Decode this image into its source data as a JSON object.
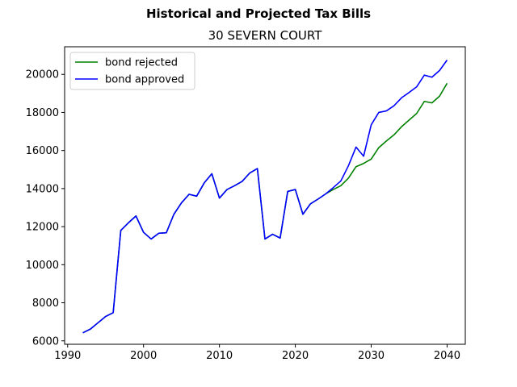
{
  "chart_data": {
    "type": "line",
    "suptitle": "Historical and Projected Tax Bills",
    "title": "30 SEVERN COURT",
    "xlabel": "",
    "ylabel": "",
    "xlim": [
      1989.6,
      2042.4
    ],
    "ylim": [
      5820,
      21450
    ],
    "x_ticks": [
      1990,
      2000,
      2010,
      2020,
      2030,
      2040
    ],
    "y_ticks": [
      6000,
      8000,
      10000,
      12000,
      14000,
      16000,
      18000,
      20000
    ],
    "grid": false,
    "legend_position": "upper-left",
    "colors": {
      "bond rejected": "#008000",
      "bond approved": "#0000ff"
    },
    "x": [
      1992,
      1993,
      1994,
      1995,
      1996,
      1997,
      1998,
      1999,
      2000,
      2001,
      2002,
      2003,
      2004,
      2005,
      2006,
      2007,
      2008,
      2009,
      2010,
      2011,
      2012,
      2013,
      2014,
      2015,
      2016,
      2017,
      2018,
      2019,
      2020,
      2021,
      2022,
      2023,
      2024,
      2025,
      2026,
      2027,
      2028,
      2029,
      2030,
      2031,
      2032,
      2033,
      2034,
      2035,
      2036,
      2037,
      2038,
      2039,
      2040
    ],
    "series": [
      {
        "name": "bond rejected",
        "values": [
          6420,
          6620,
          6950,
          7280,
          7480,
          11800,
          12200,
          12560,
          11700,
          11350,
          11650,
          11680,
          12650,
          13250,
          13700,
          13600,
          14300,
          14780,
          13500,
          13950,
          14150,
          14380,
          14820,
          15050,
          11350,
          11600,
          11400,
          13850,
          13950,
          12650,
          13200,
          13450,
          13720,
          13950,
          14150,
          14550,
          15150,
          15320,
          15550,
          16150,
          16500,
          16820,
          17250,
          17600,
          17950,
          18580,
          18500,
          18850,
          19530
        ]
      },
      {
        "name": "bond approved",
        "values": [
          6420,
          6620,
          6950,
          7280,
          7480,
          11800,
          12200,
          12560,
          11700,
          11350,
          11650,
          11680,
          12650,
          13250,
          13700,
          13600,
          14300,
          14780,
          13500,
          13950,
          14150,
          14380,
          14820,
          15050,
          11350,
          11600,
          11400,
          13850,
          13950,
          12650,
          13200,
          13450,
          13720,
          14050,
          14400,
          15200,
          16180,
          15700,
          17350,
          18000,
          18080,
          18350,
          18770,
          19050,
          19350,
          19960,
          19850,
          20200,
          20750
        ]
      }
    ]
  }
}
